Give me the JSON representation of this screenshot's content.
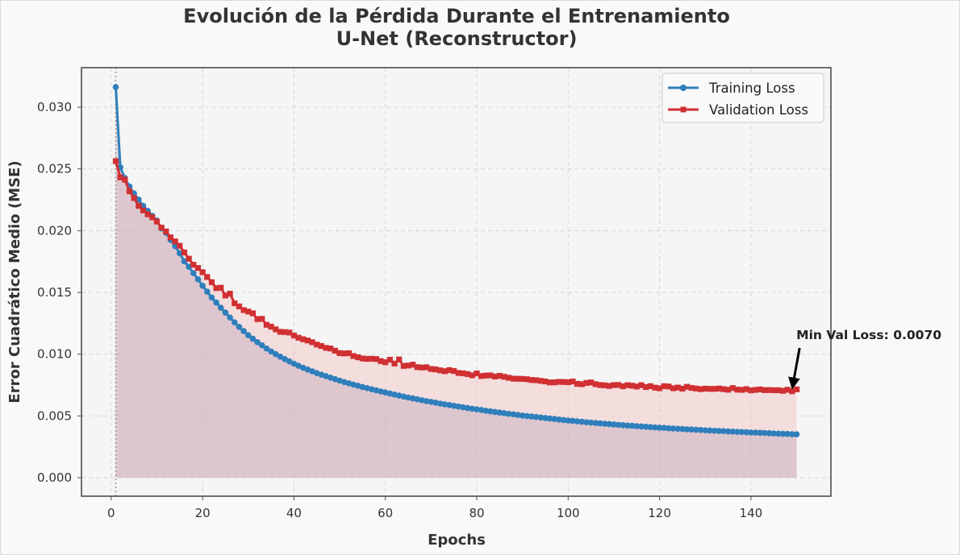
{
  "colors": {
    "train": "#2e7fbb",
    "val": "#d03032",
    "fill_train": "#b294b2",
    "fill_val": "#f2c2c2",
    "axes_bg": "#f5f5f5",
    "grid": "#d4d4d4",
    "spine": "#4d4d4d"
  },
  "chart_data": {
    "type": "line",
    "title": [
      "Evolución de la Pérdida Durante el Entrenamiento",
      "U-Net (Reconstructor)"
    ],
    "xlabel": "Epochs",
    "ylabel": "Error Cuadrático Medio (MSE)",
    "xlim": [
      -6.5,
      157.5
    ],
    "ylim": [
      -0.0015,
      0.0332
    ],
    "xticks": [
      0,
      20,
      40,
      60,
      80,
      100,
      120,
      140
    ],
    "xtick_labels": [
      "0",
      "20",
      "40",
      "60",
      "80",
      "100",
      "120",
      "140"
    ],
    "yticks": [
      0.0,
      0.005,
      0.01,
      0.015,
      0.02,
      0.025,
      0.03
    ],
    "ytick_labels": [
      "0.000",
      "0.005",
      "0.010",
      "0.015",
      "0.020",
      "0.025",
      "0.030"
    ],
    "grid": true,
    "legend_position": "top-right",
    "vline_x": 1,
    "x": [
      1,
      2,
      3,
      4,
      5,
      6,
      7,
      8,
      9,
      10,
      11,
      12,
      13,
      14,
      15,
      16,
      17,
      18,
      19,
      20,
      21,
      22,
      23,
      24,
      25,
      26,
      27,
      28,
      29,
      30,
      31,
      32,
      33,
      34,
      35,
      36,
      37,
      38,
      39,
      40,
      41,
      42,
      43,
      44,
      45,
      46,
      47,
      48,
      49,
      50,
      51,
      52,
      53,
      54,
      55,
      56,
      57,
      58,
      59,
      60,
      61,
      62,
      63,
      64,
      65,
      66,
      67,
      68,
      69,
      70,
      71,
      72,
      73,
      74,
      75,
      76,
      77,
      78,
      79,
      80,
      81,
      82,
      83,
      84,
      85,
      86,
      87,
      88,
      89,
      90,
      91,
      92,
      93,
      94,
      95,
      96,
      97,
      98,
      99,
      100,
      101,
      102,
      103,
      104,
      105,
      106,
      107,
      108,
      109,
      110,
      111,
      112,
      113,
      114,
      115,
      116,
      117,
      118,
      119,
      120,
      121,
      122,
      123,
      124,
      125,
      126,
      127,
      128,
      129,
      130,
      131,
      132,
      133,
      134,
      135,
      136,
      137,
      138,
      139,
      140,
      141,
      142,
      143,
      144,
      145,
      146,
      147,
      148,
      149,
      150
    ],
    "series": [
      {
        "name": "Training Loss",
        "marker": "circle",
        "values": [
          0.03163,
          0.02513,
          0.02426,
          0.02358,
          0.02301,
          0.02252,
          0.02201,
          0.0216,
          0.0212,
          0.02082,
          0.02018,
          0.01983,
          0.01925,
          0.01875,
          0.01818,
          0.01752,
          0.01708,
          0.01656,
          0.01607,
          0.01554,
          0.01506,
          0.01458,
          0.01418,
          0.01376,
          0.01337,
          0.01297,
          0.01258,
          0.01221,
          0.01187,
          0.01154,
          0.01125,
          0.01097,
          0.01072,
          0.01046,
          0.01022,
          0.01001,
          0.0098,
          0.0096,
          0.00941,
          0.00923,
          0.00906,
          0.0089,
          0.00875,
          0.00861,
          0.00847,
          0.00834,
          0.00822,
          0.0081,
          0.00798,
          0.00786,
          0.00774,
          0.00764,
          0.00754,
          0.00744,
          0.00734,
          0.00725,
          0.00716,
          0.00707,
          0.00698,
          0.0069,
          0.00681,
          0.00673,
          0.00665,
          0.00657,
          0.00649,
          0.00642,
          0.00635,
          0.00627,
          0.0062,
          0.00614,
          0.00607,
          0.006,
          0.00594,
          0.00588,
          0.00582,
          0.00576,
          0.0057,
          0.00564,
          0.00558,
          0.00553,
          0.00548,
          0.00542,
          0.00537,
          0.00532,
          0.00527,
          0.00522,
          0.00517,
          0.00513,
          0.00508,
          0.00503,
          0.00499,
          0.00495,
          0.00491,
          0.00487,
          0.00483,
          0.00479,
          0.00475,
          0.00471,
          0.00467,
          0.00463,
          0.0046,
          0.00456,
          0.00453,
          0.00449,
          0.00446,
          0.00443,
          0.0044,
          0.00437,
          0.00434,
          0.00431,
          0.00428,
          0.00425,
          0.00422,
          0.0042,
          0.00417,
          0.00415,
          0.00412,
          0.0041,
          0.00407,
          0.00405,
          0.00403,
          0.004,
          0.00398,
          0.00396,
          0.00394,
          0.00392,
          0.0039,
          0.00388,
          0.00386,
          0.00384,
          0.00382,
          0.0038,
          0.00378,
          0.00377,
          0.00375,
          0.00373,
          0.00371,
          0.0037,
          0.00368,
          0.00366,
          0.00365,
          0.00363,
          0.00362,
          0.0036,
          0.00358,
          0.00357,
          0.00355,
          0.00354,
          0.00352,
          0.00351
        ]
      },
      {
        "name": "Validation Loss",
        "marker": "square",
        "values": [
          0.02563,
          0.02432,
          0.02413,
          0.02319,
          0.02264,
          0.02201,
          0.02164,
          0.02133,
          0.02108,
          0.02074,
          0.02025,
          0.01994,
          0.01946,
          0.01913,
          0.01878,
          0.01824,
          0.01773,
          0.01724,
          0.01698,
          0.01664,
          0.01625,
          0.01583,
          0.01535,
          0.01538,
          0.01475,
          0.0149,
          0.01412,
          0.01387,
          0.01357,
          0.01345,
          0.01331,
          0.01284,
          0.01286,
          0.01238,
          0.01223,
          0.01201,
          0.01181,
          0.01179,
          0.01175,
          0.01151,
          0.01133,
          0.01121,
          0.01111,
          0.01097,
          0.01078,
          0.01066,
          0.01051,
          0.01046,
          0.01028,
          0.01009,
          0.01006,
          0.01008,
          0.00985,
          0.00975,
          0.00965,
          0.00962,
          0.00963,
          0.00961,
          0.00944,
          0.00935,
          0.00955,
          0.00924,
          0.00957,
          0.00905,
          0.00908,
          0.00915,
          0.00895,
          0.00892,
          0.00894,
          0.0088,
          0.00877,
          0.00869,
          0.00862,
          0.00871,
          0.00864,
          0.00848,
          0.00845,
          0.00839,
          0.00829,
          0.00844,
          0.00823,
          0.00827,
          0.00828,
          0.00819,
          0.00825,
          0.00817,
          0.00809,
          0.00802,
          0.00801,
          0.008,
          0.00797,
          0.00791,
          0.00789,
          0.00784,
          0.00779,
          0.00771,
          0.00772,
          0.00776,
          0.00775,
          0.00773,
          0.00779,
          0.0076,
          0.00757,
          0.00767,
          0.00771,
          0.00757,
          0.0075,
          0.00748,
          0.00743,
          0.0075,
          0.00751,
          0.0074,
          0.00749,
          0.00745,
          0.00738,
          0.00749,
          0.00734,
          0.00741,
          0.00729,
          0.00724,
          0.00741,
          0.00738,
          0.00724,
          0.0073,
          0.00721,
          0.00736,
          0.00727,
          0.00722,
          0.00717,
          0.00721,
          0.00719,
          0.00719,
          0.00722,
          0.00717,
          0.00712,
          0.00726,
          0.00713,
          0.00711,
          0.00717,
          0.00707,
          0.00711,
          0.00715,
          0.00709,
          0.0071,
          0.00708,
          0.00708,
          0.00703,
          0.00712,
          0.007,
          0.00715
        ]
      }
    ],
    "annotation": {
      "text": "Min Val Loss: 0.0070",
      "x": 149,
      "y": 0.007,
      "text_x": 151,
      "text_y": 0.0105
    }
  }
}
